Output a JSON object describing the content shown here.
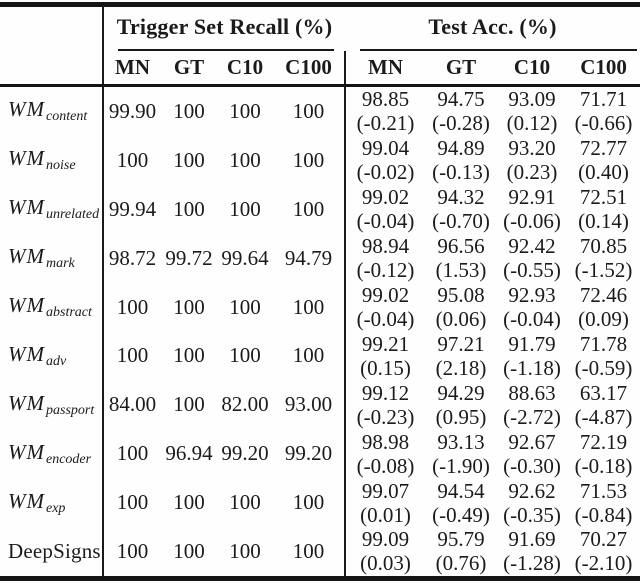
{
  "ink_color": "#1b1b1b",
  "background_color": "#fefefe",
  "header": {
    "group1": "Trigger Set Recall (%)",
    "group2": "Test Acc. (%)",
    "cols1": [
      "MN",
      "GT",
      "C10",
      "C100"
    ],
    "cols2": [
      "MN",
      "GT",
      "C10",
      "C100"
    ]
  },
  "rows": [
    {
      "label": {
        "base": "WM",
        "sub": "content"
      },
      "tsr": [
        "99.90",
        "100",
        "100",
        "100"
      ],
      "test": [
        {
          "v": "98.85",
          "d": "(-0.21)"
        },
        {
          "v": "94.75",
          "d": "(-0.28)"
        },
        {
          "v": "93.09",
          "d": "(0.12)"
        },
        {
          "v": "71.71",
          "d": "(-0.66)"
        }
      ]
    },
    {
      "label": {
        "base": "WM",
        "sub": "noise"
      },
      "tsr": [
        "100",
        "100",
        "100",
        "100"
      ],
      "test": [
        {
          "v": "99.04",
          "d": "(-0.02)"
        },
        {
          "v": "94.89",
          "d": "(-0.13)"
        },
        {
          "v": "93.20",
          "d": "(0.23)"
        },
        {
          "v": "72.77",
          "d": "(0.40)"
        }
      ]
    },
    {
      "label": {
        "base": "WM",
        "sub": "unrelated"
      },
      "tsr": [
        "99.94",
        "100",
        "100",
        "100"
      ],
      "test": [
        {
          "v": "99.02",
          "d": "(-0.04)"
        },
        {
          "v": "94.32",
          "d": "(-0.70)"
        },
        {
          "v": "92.91",
          "d": "(-0.06)"
        },
        {
          "v": "72.51",
          "d": "(0.14)"
        }
      ]
    },
    {
      "label": {
        "base": "WM",
        "sub": "mark"
      },
      "tsr": [
        "98.72",
        "99.72",
        "99.64",
        "94.79"
      ],
      "test": [
        {
          "v": "98.94",
          "d": "(-0.12)"
        },
        {
          "v": "96.56",
          "d": "(1.53)"
        },
        {
          "v": "92.42",
          "d": "(-0.55)"
        },
        {
          "v": "70.85",
          "d": "(-1.52)"
        }
      ]
    },
    {
      "label": {
        "base": "WM",
        "sub": "abstract"
      },
      "tsr": [
        "100",
        "100",
        "100",
        "100"
      ],
      "test": [
        {
          "v": "99.02",
          "d": "(-0.04)"
        },
        {
          "v": "95.08",
          "d": "(0.06)"
        },
        {
          "v": "92.93",
          "d": "(-0.04)"
        },
        {
          "v": "72.46",
          "d": "(0.09)"
        }
      ]
    },
    {
      "label": {
        "base": "WM",
        "sub": "adv"
      },
      "tsr": [
        "100",
        "100",
        "100",
        "100"
      ],
      "test": [
        {
          "v": "99.21",
          "d": "(0.15)"
        },
        {
          "v": "97.21",
          "d": "(2.18)"
        },
        {
          "v": "91.79",
          "d": "(-1.18)"
        },
        {
          "v": "71.78",
          "d": "(-0.59)"
        }
      ]
    },
    {
      "label": {
        "base": "WM",
        "sub": "passport"
      },
      "tsr": [
        "84.00",
        "100",
        "82.00",
        "93.00"
      ],
      "test": [
        {
          "v": "99.12",
          "d": "(-0.23)"
        },
        {
          "v": "94.29",
          "d": "(0.95)"
        },
        {
          "v": "88.63",
          "d": "(-2.72)"
        },
        {
          "v": "63.17",
          "d": "(-4.87)"
        }
      ]
    },
    {
      "label": {
        "base": "WM",
        "sub": "encoder"
      },
      "tsr": [
        "100",
        "96.94",
        "99.20",
        "99.20"
      ],
      "test": [
        {
          "v": "98.98",
          "d": "(-0.08)"
        },
        {
          "v": "93.13",
          "d": "(-1.90)"
        },
        {
          "v": "92.67",
          "d": "(-0.30)"
        },
        {
          "v": "72.19",
          "d": "(-0.18)"
        }
      ]
    },
    {
      "label": {
        "base": "WM",
        "sub": "exp"
      },
      "tsr": [
        "100",
        "100",
        "100",
        "100"
      ],
      "test": [
        {
          "v": "99.07",
          "d": "(0.01)"
        },
        {
          "v": "94.54",
          "d": "(-0.49)"
        },
        {
          "v": "92.62",
          "d": "(-0.35)"
        },
        {
          "v": "71.53",
          "d": "(-0.84)"
        }
      ]
    },
    {
      "label": {
        "base": "DeepSigns",
        "sub": ""
      },
      "tsr": [
        "100",
        "100",
        "100",
        "100"
      ],
      "test": [
        {
          "v": "99.09",
          "d": "(0.03)"
        },
        {
          "v": "95.79",
          "d": "(0.76)"
        },
        {
          "v": "91.69",
          "d": "(-1.28)"
        },
        {
          "v": "70.27",
          "d": "(-2.10)"
        }
      ]
    }
  ]
}
